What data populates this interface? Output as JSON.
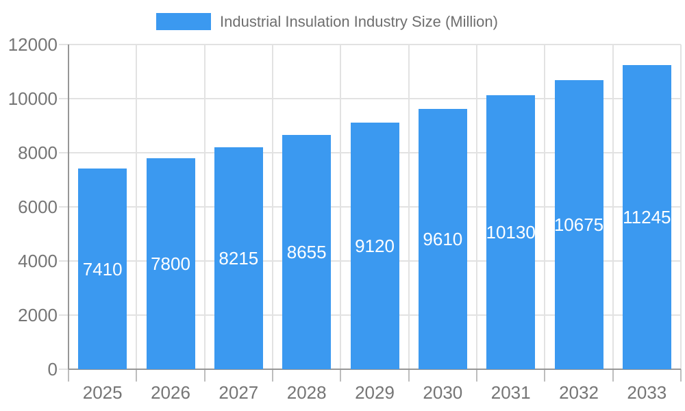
{
  "legend": {
    "label": "Industrial Insulation Industry Size (Million)"
  },
  "colors": {
    "bar": "#3B99F0",
    "grid": "#E2E2E2",
    "axis": "#969696",
    "x_tick": "#BDBDBD",
    "y_tick": "#E2E2E2",
    "tick_label": "#757575",
    "legend_label": "#6E6E6E",
    "value_label": "#FFFFFF",
    "background": "#FFFFFF"
  },
  "chart_data": {
    "type": "bar",
    "title": "Industrial Insulation Industry Size (Million)",
    "series": [
      {
        "name": "Industrial Insulation Industry Size (Million)",
        "values": [
          7410,
          7800,
          8215,
          8655,
          9120,
          9610,
          10130,
          10675,
          11245
        ]
      }
    ],
    "categories": [
      "2025",
      "2026",
      "2027",
      "2028",
      "2029",
      "2030",
      "2031",
      "2032",
      "2033"
    ],
    "value_labels": [
      "7410",
      "7800",
      "8215",
      "8655",
      "9120",
      "9610",
      "10130",
      "10675",
      "11245"
    ],
    "xlabel": "",
    "ylabel": "",
    "ylim": [
      0,
      12000
    ],
    "yticks": [
      0,
      2000,
      4000,
      6000,
      8000,
      10000,
      12000
    ],
    "ytick_labels": [
      "0",
      "2000",
      "4000",
      "6000",
      "8000",
      "10000",
      "12000"
    ],
    "grid": true,
    "legend_position": "top",
    "value_label_position": "inside-center"
  }
}
